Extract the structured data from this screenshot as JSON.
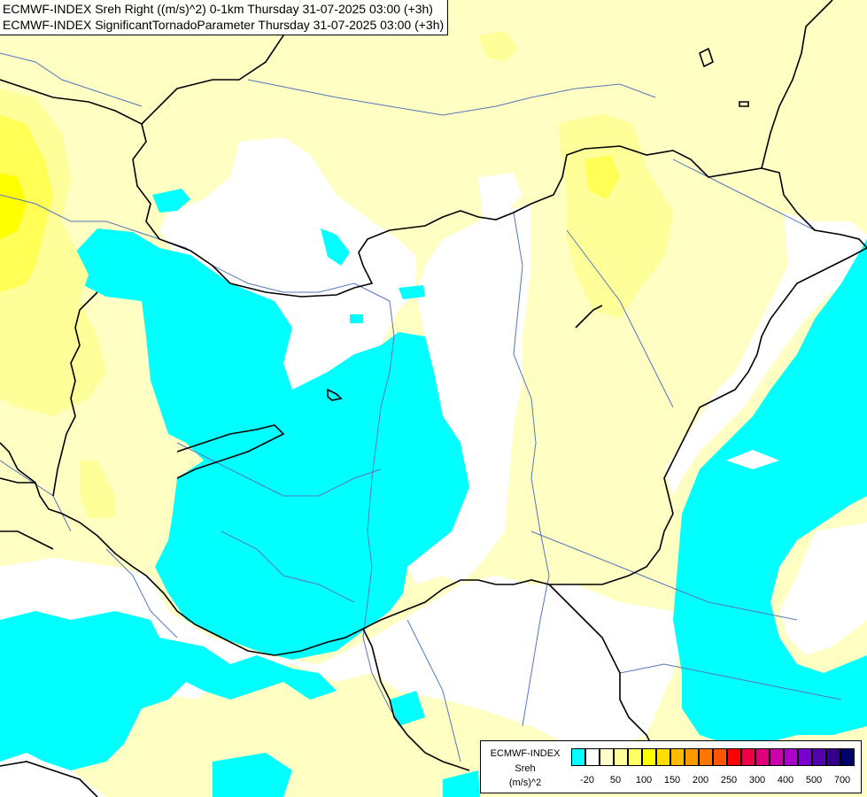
{
  "title": {
    "line1": "ECMWF-INDEX Sreh Right ((m/s)^2) 0-1km Thursday 31-07-2025 03:00 (+3h)",
    "line2": "ECMWF-INDEX SignificantTornadoParameter Thursday 31-07-2025 03:00 (+3h)"
  },
  "legend": {
    "label1": "ECMWF-INDEX",
    "label2": "Sreh",
    "label3": "(m/s)^2",
    "colors": [
      "#00ffff",
      "#ffffff",
      "#ffffcc",
      "#ffff99",
      "#ffff66",
      "#ffff00",
      "#ffdd00",
      "#ffbb00",
      "#ff9900",
      "#ff7700",
      "#ff5500",
      "#ff0000",
      "#ee0044",
      "#dd0077",
      "#cc00aa",
      "#aa00cc",
      "#7700cc",
      "#5500aa",
      "#330088",
      "#000066"
    ],
    "ticks": [
      "-20",
      "50",
      "100",
      "150",
      "200",
      "250",
      "300",
      "400",
      "500",
      "700"
    ]
  },
  "colors": {
    "cyan": "#00ffff",
    "white": "#ffffff",
    "pale_yellow": "#ffffc4",
    "light_yellow": "#ffff99",
    "yellow": "#ffff44",
    "bright_yellow": "#ffff00",
    "border": "#000000",
    "river": "#5577bb"
  }
}
